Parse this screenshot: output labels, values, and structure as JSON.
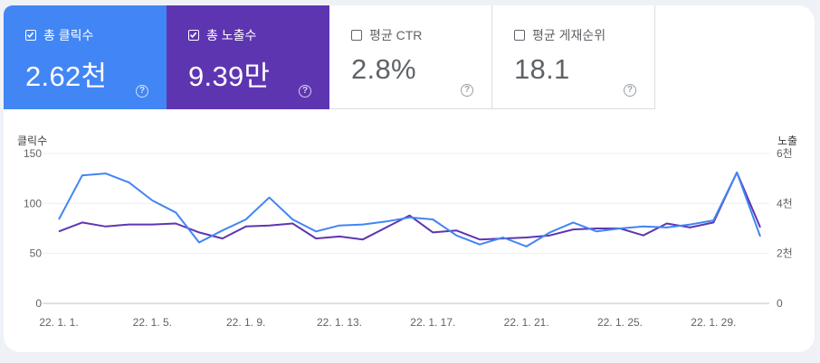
{
  "metrics": [
    {
      "label": "총 클릭수",
      "value": "2.62천",
      "checked": true
    },
    {
      "label": "총 노출수",
      "value": "9.39만",
      "checked": true
    },
    {
      "label": "평균 CTR",
      "value": "2.8%",
      "checked": false
    },
    {
      "label": "평균 게재순위",
      "value": "18.1",
      "checked": false
    }
  ],
  "help_glyph": "?",
  "colors": {
    "clicks": "#4285f4",
    "impressions": "#5e35b1",
    "grid": "#eceff1"
  },
  "chart_data": {
    "type": "line",
    "xlabel": "",
    "y_left_title": "클릭수",
    "y_right_title": "노출",
    "y_left_ticks": [
      "150",
      "100",
      "50",
      "0"
    ],
    "y_right_ticks": [
      "6천",
      "4천",
      "2천",
      "0"
    ],
    "ylim_left": [
      0,
      150
    ],
    "ylim_right": [
      0,
      6000
    ],
    "x_tick_labels": [
      "22. 1. 1.",
      "22. 1. 5.",
      "22. 1. 9.",
      "22. 1. 13.",
      "22. 1. 17.",
      "22. 1. 21.",
      "22. 1. 25.",
      "22. 1. 29."
    ],
    "grid": true,
    "series": [
      {
        "name": "총 클릭수",
        "axis": "left",
        "values": [
          84,
          128,
          130,
          121,
          103,
          91,
          61,
          73,
          84,
          106,
          84,
          72,
          78,
          79,
          82,
          86,
          84,
          68,
          59,
          66,
          57,
          71,
          81,
          72,
          75,
          77,
          76,
          79,
          83,
          131,
          67
        ]
      },
      {
        "name": "총 노출수",
        "axis": "left",
        "values": [
          72,
          81,
          77,
          79,
          79,
          80,
          71,
          65,
          77,
          78,
          80,
          65,
          67,
          64,
          76,
          88,
          71,
          73,
          64,
          65,
          66,
          68,
          74,
          75,
          75,
          68,
          80,
          76,
          81,
          131,
          76
        ]
      }
    ]
  }
}
